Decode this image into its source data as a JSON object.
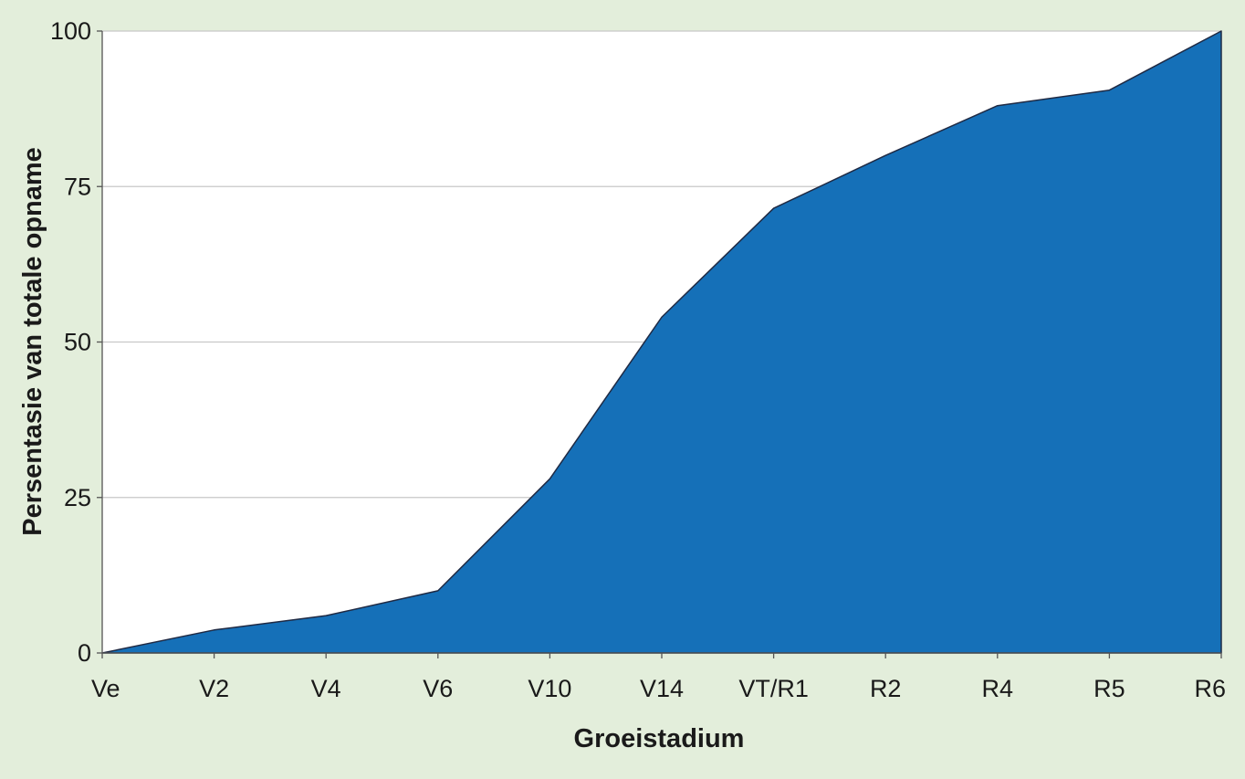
{
  "colors": {
    "background": "#e3eedb",
    "plot_background": "#ffffff",
    "area_fill": "#1570b8",
    "area_stroke": "#1f2a44",
    "gridline": "#c8c8c8",
    "axis": "#555555"
  },
  "chart_data": {
    "type": "area",
    "categories": [
      "Ve",
      "V2",
      "V4",
      "V6",
      "V10",
      "V14",
      "VT/R1",
      "R2",
      "R4",
      "R5",
      "R6"
    ],
    "series": [
      {
        "values": [
          0,
          3.7,
          6.0,
          10.0,
          28.0,
          54.0,
          71.5,
          80.0,
          88.0,
          90.5,
          100
        ]
      }
    ],
    "title": "",
    "xlabel": "Groeistadium",
    "ylabel": "Persentasie van totale opname",
    "ylim": [
      0,
      100
    ],
    "yticks": [
      0,
      25,
      50,
      75,
      100
    ],
    "grid": "horizontal",
    "legend": "none"
  }
}
